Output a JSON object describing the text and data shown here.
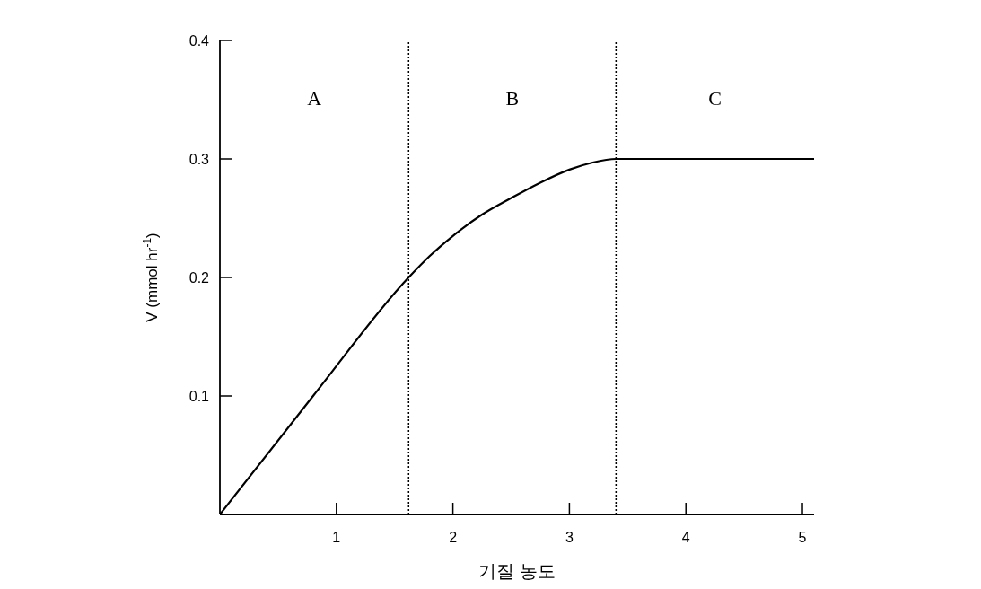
{
  "chart_data": {
    "type": "line",
    "xlabel": "기질 농도",
    "ylabel": "V (mmol hr$^{-1}$)",
    "series": [
      {
        "color": "#000000",
        "x": [
          0,
          0.8,
          1.62,
          1.8,
          2.0,
          2.25,
          2.5,
          2.75,
          3.0,
          3.2,
          3.4,
          4.0,
          4.5,
          5.1
        ],
        "values": [
          0,
          0.1,
          0.2,
          0.218,
          0.235,
          0.253,
          0.267,
          0.28,
          0.291,
          0.297,
          0.3,
          0.3,
          0.3,
          0.3
        ]
      }
    ],
    "xlim": [
      0,
      5.1
    ],
    "ylim": [
      0,
      0.4
    ],
    "xticks": [
      1,
      2,
      3,
      4,
      5
    ],
    "yticks": [
      0.1,
      0.2,
      0.3,
      0.4
    ],
    "ref_lines": [
      {
        "axis": "x",
        "value": 1.62,
        "line_style": "dotted",
        "color": "#000000"
      },
      {
        "axis": "x",
        "value": 3.4,
        "line_style": "dotted",
        "color": "#000000"
      }
    ],
    "annotations": [
      "A",
      "B",
      "C"
    ],
    "grid": false,
    "marker": "none",
    "line_style": "solid"
  }
}
